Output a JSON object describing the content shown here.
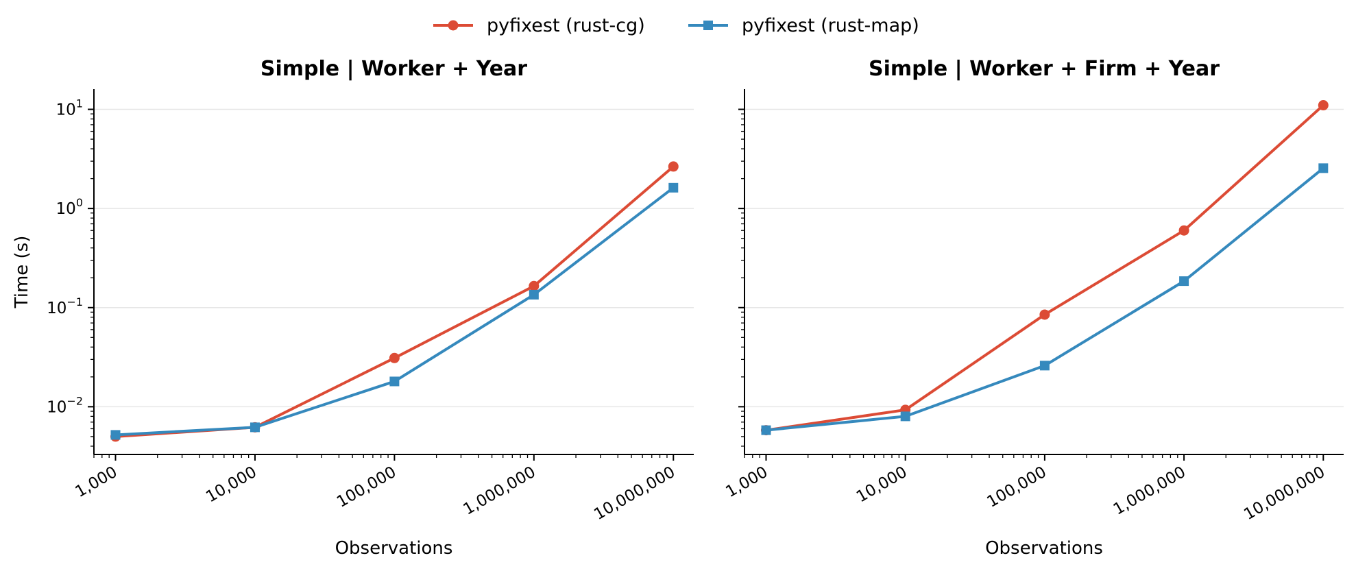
{
  "legend": {
    "placement": "top-center",
    "entries": [
      {
        "label": "pyfixest (rust-cg)",
        "color": "#dc4b35",
        "marker": "circle"
      },
      {
        "label": "pyfixest (rust-map)",
        "color": "#3589bd",
        "marker": "square"
      }
    ]
  },
  "chart_data": [
    {
      "type": "line",
      "title": "Simple  |  Worker + Year",
      "xlabel": "Observations",
      "ylabel": "Time (s)",
      "xscale": "log",
      "yscale": "log",
      "x": [
        1000,
        10000,
        100000,
        1000000,
        10000000
      ],
      "xtick_labels": [
        "1,000",
        "10,000",
        "100,000",
        "1,000,000",
        "10,000,000"
      ],
      "yticks": [
        0.01,
        0.1,
        1,
        10
      ],
      "ytick_labels": [
        [
          "10",
          "−2"
        ],
        [
          "10",
          "−1"
        ],
        [
          "10",
          "0"
        ],
        [
          "10",
          "1"
        ]
      ],
      "ylim": [
        0.0033,
        16
      ],
      "grid": "y-major",
      "series": [
        {
          "name": "pyfixest (rust-cg)",
          "color": "#dc4b35",
          "marker": "circle",
          "values": [
            0.005,
            0.0062,
            0.031,
            0.165,
            2.65
          ]
        },
        {
          "name": "pyfixest (rust-map)",
          "color": "#3589bd",
          "marker": "square",
          "values": [
            0.0052,
            0.0062,
            0.018,
            0.135,
            1.62
          ]
        }
      ]
    },
    {
      "type": "line",
      "title": "Simple  |  Worker + Firm + Year",
      "xlabel": "Observations",
      "ylabel": "",
      "xscale": "log",
      "yscale": "log",
      "x": [
        1000,
        10000,
        100000,
        1000000,
        10000000
      ],
      "xtick_labels": [
        "1,000",
        "10,000",
        "100,000",
        "1,000,000",
        "10,000,000"
      ],
      "yticks": [
        0.01,
        0.1,
        1,
        10
      ],
      "ytick_labels": [],
      "ylim": [
        0.0033,
        16
      ],
      "grid": "y-major",
      "series": [
        {
          "name": "pyfixest (rust-cg)",
          "color": "#dc4b35",
          "marker": "circle",
          "values": [
            0.0058,
            0.0093,
            0.085,
            0.6,
            11.0
          ]
        },
        {
          "name": "pyfixest (rust-map)",
          "color": "#3589bd",
          "marker": "square",
          "values": [
            0.0058,
            0.008,
            0.026,
            0.185,
            2.55
          ]
        }
      ]
    }
  ]
}
